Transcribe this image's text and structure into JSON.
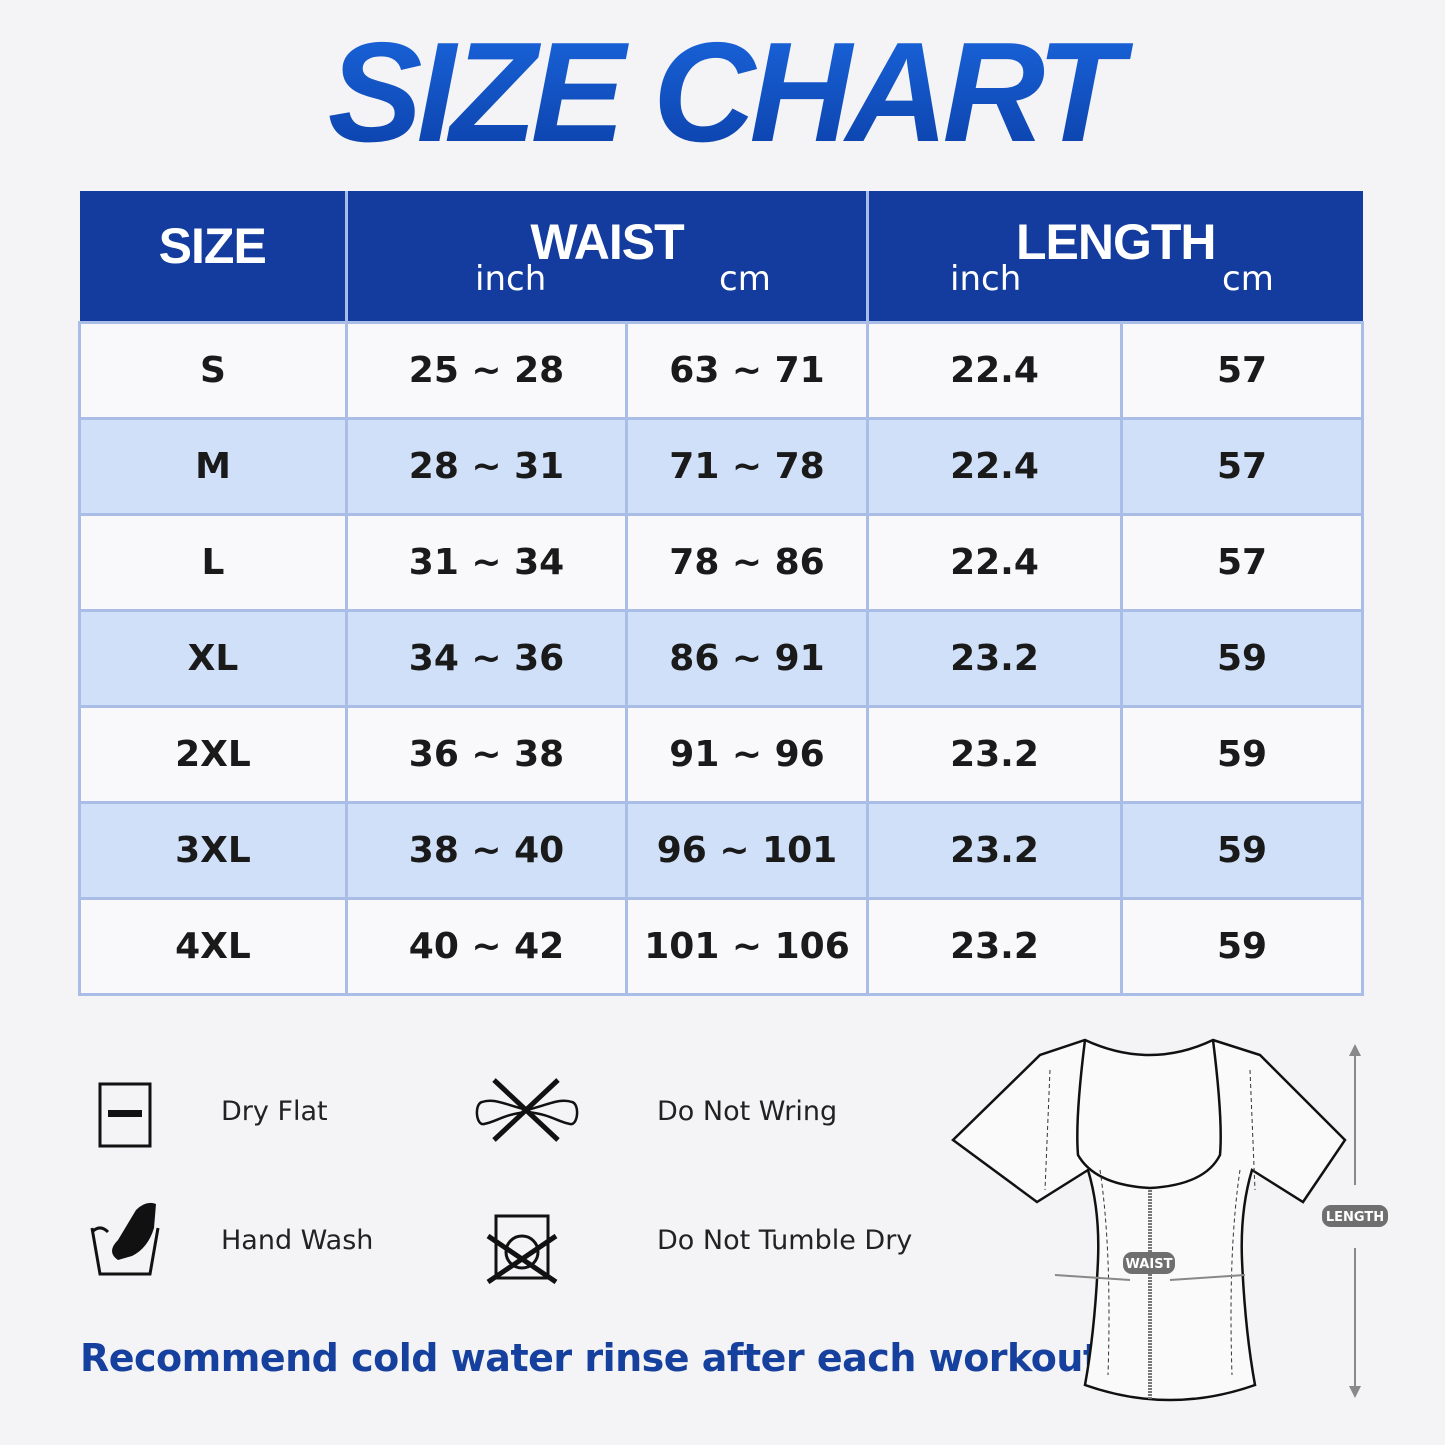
{
  "title": "SIZE CHART",
  "table": {
    "headers": {
      "size": "SIZE",
      "waist": "WAIST",
      "length": "LENGTH",
      "waist_inch": "inch",
      "waist_cm": "cm",
      "length_inch": "inch",
      "length_cm": "cm"
    },
    "rows": [
      {
        "size": "S",
        "waist_inch": "25 ~ 28",
        "waist_cm": "63 ~ 71",
        "length_inch": "22.4",
        "length_cm": "57"
      },
      {
        "size": "M",
        "waist_inch": "28 ~ 31",
        "waist_cm": "71 ~ 78",
        "length_inch": "22.4",
        "length_cm": "57"
      },
      {
        "size": "L",
        "waist_inch": "31 ~ 34",
        "waist_cm": "78 ~ 86",
        "length_inch": "22.4",
        "length_cm": "57"
      },
      {
        "size": "XL",
        "waist_inch": "34 ~ 36",
        "waist_cm": "86 ~ 91",
        "length_inch": "23.2",
        "length_cm": "59"
      },
      {
        "size": "2XL",
        "waist_inch": "36 ~ 38",
        "waist_cm": "91 ~ 96",
        "length_inch": "23.2",
        "length_cm": "59"
      },
      {
        "size": "3XL",
        "waist_inch": "38 ~ 40",
        "waist_cm": "96 ~ 101",
        "length_inch": "23.2",
        "length_cm": "59"
      },
      {
        "size": "4XL",
        "waist_inch": "40 ~ 42",
        "waist_cm": "101 ~ 106",
        "length_inch": "23.2",
        "length_cm": "59"
      }
    ]
  },
  "care": {
    "dry_flat": {
      "label": "Dry Flat",
      "icon": "dry-flat-icon"
    },
    "do_not_wring": {
      "label": "Do Not Wring",
      "icon": "do-not-wring-icon"
    },
    "hand_wash": {
      "label": "Hand Wash",
      "icon": "hand-wash-icon"
    },
    "do_not_tumble_dry": {
      "label": "Do Not Tumble Dry",
      "icon": "do-not-tumble-dry-icon"
    }
  },
  "note": "Recommend cold water rinse after each workout.",
  "diagram": {
    "waist_label": "WAIST",
    "length_label": "LENGTH"
  },
  "colors": {
    "header": "#143c9e",
    "alt_row": "#cfe0f8",
    "title": "#0f4fc0",
    "note": "#16409e"
  }
}
